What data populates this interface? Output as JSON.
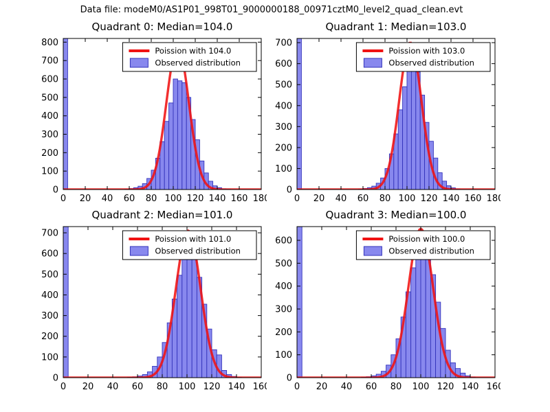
{
  "figure_title": "Data file: modeM0/AS1P01_998T01_9000000188_00971cztM0_level2_quad_clean.evt",
  "colors": {
    "bar_fill": "#8888ee",
    "bar_edge": "#3333bb",
    "curve_red": "#f01212",
    "axis": "#000000",
    "background": "#ffffff"
  },
  "chart_data": [
    {
      "type": "bar",
      "subtype": "histogram-with-fit-line",
      "title": "Quadrant 0: Median=104.0",
      "legend": [
        "Poission with 104.0",
        "Observed distribution"
      ],
      "xlim": [
        0,
        180
      ],
      "ylim": [
        0,
        820
      ],
      "xticks": [
        0,
        20,
        40,
        60,
        80,
        100,
        120,
        140,
        160,
        180
      ],
      "yticks": [
        0,
        100,
        200,
        300,
        400,
        500,
        600,
        700,
        800
      ],
      "bin_start": 0,
      "bin_width": 4,
      "counts": [
        820,
        0,
        0,
        0,
        0,
        0,
        0,
        0,
        0,
        0,
        0,
        0,
        0,
        0,
        2,
        5,
        10,
        18,
        32,
        60,
        105,
        170,
        260,
        370,
        470,
        600,
        590,
        580,
        500,
        380,
        270,
        155,
        90,
        45,
        20,
        10,
        4,
        2
      ],
      "curve": {
        "mean": 104.0,
        "sigma": 10.2,
        "peak": 780
      }
    },
    {
      "type": "bar",
      "subtype": "histogram-with-fit-line",
      "title": "Quadrant 1: Median=103.0",
      "legend": [
        "Poission with 103.0",
        "Observed distribution"
      ],
      "xlim": [
        0,
        180
      ],
      "ylim": [
        0,
        720
      ],
      "xticks": [
        0,
        20,
        40,
        60,
        80,
        100,
        120,
        140,
        160,
        180
      ],
      "yticks": [
        0,
        100,
        200,
        300,
        400,
        500,
        600,
        700
      ],
      "bin_start": 0,
      "bin_width": 4,
      "counts": [
        720,
        0,
        0,
        0,
        0,
        0,
        0,
        0,
        0,
        0,
        0,
        0,
        0,
        0,
        2,
        5,
        9,
        16,
        30,
        55,
        100,
        170,
        265,
        380,
        490,
        580,
        620,
        560,
        450,
        320,
        230,
        150,
        80,
        40,
        18,
        8,
        3
      ],
      "curve": {
        "mean": 103.0,
        "sigma": 10.1,
        "peak": 700
      }
    },
    {
      "type": "bar",
      "subtype": "histogram-with-fit-line",
      "title": "Quadrant 2: Median=101.0",
      "legend": [
        "Poission with 101.0",
        "Observed distribution"
      ],
      "xlim": [
        0,
        160
      ],
      "ylim": [
        0,
        730
      ],
      "xticks": [
        0,
        20,
        40,
        60,
        80,
        100,
        120,
        140,
        160
      ],
      "yticks": [
        0,
        100,
        200,
        300,
        400,
        500,
        600,
        700
      ],
      "bin_start": 0,
      "bin_width": 4,
      "counts": [
        730,
        0,
        0,
        0,
        0,
        0,
        0,
        0,
        0,
        0,
        0,
        0,
        0,
        2,
        4,
        8,
        15,
        28,
        55,
        100,
        170,
        265,
        380,
        495,
        580,
        625,
        585,
        485,
        355,
        235,
        135,
        110,
        35,
        15,
        6,
        2
      ],
      "curve": {
        "mean": 101.0,
        "sigma": 10.0,
        "peak": 710
      }
    },
    {
      "type": "bar",
      "subtype": "histogram-with-fit-line",
      "title": "Quadrant 3: Median=100.0",
      "legend": [
        "Poission with 100.0",
        "Observed distribution"
      ],
      "xlim": [
        0,
        160
      ],
      "ylim": [
        0,
        660
      ],
      "xticks": [
        0,
        20,
        40,
        60,
        80,
        100,
        120,
        140,
        160
      ],
      "yticks": [
        0,
        100,
        200,
        300,
        400,
        500,
        600
      ],
      "bin_start": 0,
      "bin_width": 4,
      "counts": [
        660,
        0,
        0,
        0,
        0,
        0,
        0,
        0,
        0,
        0,
        0,
        0,
        0,
        2,
        4,
        8,
        15,
        28,
        55,
        100,
        170,
        265,
        375,
        480,
        560,
        580,
        545,
        450,
        330,
        215,
        120,
        65,
        40,
        20,
        8,
        3
      ],
      "curve": {
        "mean": 100.0,
        "sigma": 10.0,
        "peak": 650
      }
    }
  ]
}
